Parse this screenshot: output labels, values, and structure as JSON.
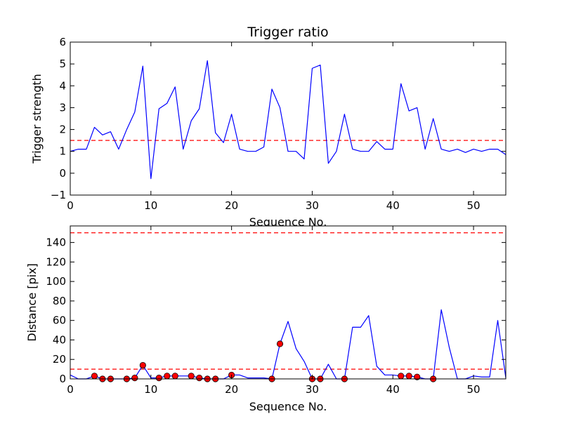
{
  "chart_data": [
    {
      "type": "line",
      "title": "Trigger ratio",
      "xlabel": "Sequence No.",
      "ylabel": "Trigger strength",
      "xlim": [
        0,
        54
      ],
      "ylim": [
        -1,
        6
      ],
      "xticks": [
        0,
        10,
        20,
        30,
        40,
        50
      ],
      "yticks": [
        -1,
        0,
        1,
        2,
        3,
        4,
        5,
        6
      ],
      "grid": false,
      "threshold": {
        "y": 1.5,
        "color": "#ff0000",
        "style": "dashed"
      },
      "series": [
        {
          "color": "#0000ff",
          "x": [
            0,
            1,
            2,
            3,
            4,
            5,
            6,
            7,
            8,
            9,
            10,
            11,
            12,
            13,
            14,
            15,
            16,
            17,
            18,
            19,
            20,
            21,
            22,
            23,
            24,
            25,
            26,
            27,
            28,
            29,
            30,
            31,
            32,
            33,
            34,
            35,
            36,
            37,
            38,
            39,
            40,
            41,
            42,
            43,
            44,
            45,
            46,
            47,
            48,
            49,
            50,
            51,
            52,
            53,
            54
          ],
          "y": [
            1.0,
            1.1,
            1.1,
            2.1,
            1.75,
            1.9,
            1.1,
            2.0,
            2.8,
            4.9,
            -0.25,
            2.95,
            3.2,
            3.95,
            1.1,
            2.4,
            2.95,
            5.15,
            1.85,
            1.4,
            2.7,
            1.1,
            1.0,
            1.0,
            1.2,
            3.85,
            3.0,
            1.0,
            1.0,
            0.65,
            4.8,
            4.95,
            0.45,
            1.0,
            2.7,
            1.1,
            1.0,
            1.0,
            1.45,
            1.1,
            1.1,
            4.1,
            2.85,
            3.0,
            1.1,
            2.5,
            1.1,
            1.0,
            1.1,
            0.95,
            1.1,
            1.0,
            1.1,
            1.1,
            0.85
          ]
        }
      ]
    },
    {
      "type": "line",
      "title": "",
      "xlabel": "Sequence No.",
      "ylabel": "Distance [pix]",
      "xlim": [
        0,
        54
      ],
      "ylim": [
        0,
        157
      ],
      "xticks": [
        0,
        10,
        20,
        30,
        40,
        50
      ],
      "yticks": [
        0,
        20,
        40,
        60,
        80,
        100,
        120,
        140
      ],
      "grid": false,
      "thresholds": [
        {
          "y": 10,
          "color": "#ff0000",
          "style": "dashed"
        },
        {
          "y": 150,
          "color": "#ff0000",
          "style": "dashed"
        }
      ],
      "series": [
        {
          "color": "#0000ff",
          "x": [
            0,
            1,
            2,
            3,
            4,
            5,
            6,
            7,
            8,
            9,
            10,
            11,
            12,
            13,
            14,
            15,
            16,
            17,
            18,
            19,
            20,
            21,
            22,
            23,
            24,
            25,
            26,
            27,
            28,
            29,
            30,
            31,
            32,
            33,
            34,
            35,
            36,
            37,
            38,
            39,
            40,
            41,
            42,
            43,
            44,
            45,
            46,
            47,
            48,
            49,
            50,
            51,
            52,
            53,
            54
          ],
          "y": [
            4,
            0,
            0,
            3,
            0,
            0,
            0,
            0,
            1,
            14,
            1,
            1,
            3,
            3,
            3,
            3,
            1,
            0,
            0,
            0,
            4,
            4,
            1,
            1,
            1,
            0,
            36,
            59,
            31,
            18,
            0,
            0,
            15,
            0,
            0,
            53,
            53,
            65,
            13,
            4,
            4,
            3,
            3,
            2,
            0,
            0,
            71,
            32,
            0,
            0,
            3,
            2,
            2,
            60,
            1
          ]
        }
      ],
      "markers": {
        "color": "#ff0000",
        "x": [
          3,
          4,
          5,
          7,
          8,
          9,
          11,
          12,
          13,
          15,
          16,
          17,
          18,
          20,
          25,
          26,
          30,
          31,
          34,
          41,
          42,
          43,
          45
        ],
        "y": [
          3,
          0,
          0,
          0,
          1,
          14,
          1,
          3,
          3,
          3,
          1,
          0,
          0,
          4,
          0,
          36,
          0,
          0,
          0,
          3,
          3,
          2,
          0
        ]
      }
    }
  ]
}
